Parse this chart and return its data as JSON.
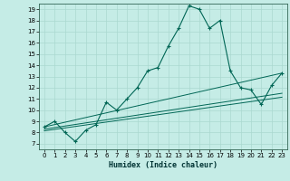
{
  "title": "",
  "xlabel": "Humidex (Indice chaleur)",
  "background_color": "#c5ece6",
  "grid_color": "#aad8d0",
  "line_color": "#006655",
  "xlim": [
    -0.5,
    23.5
  ],
  "ylim": [
    6.5,
    19.5
  ],
  "xticks": [
    0,
    1,
    2,
    3,
    4,
    5,
    6,
    7,
    8,
    9,
    10,
    11,
    12,
    13,
    14,
    15,
    16,
    17,
    18,
    19,
    20,
    21,
    22,
    23
  ],
  "yticks": [
    7,
    8,
    9,
    10,
    11,
    12,
    13,
    14,
    15,
    16,
    17,
    18,
    19
  ],
  "main_series": [
    [
      0,
      8.5
    ],
    [
      1,
      9.0
    ],
    [
      2,
      8.0
    ],
    [
      3,
      7.2
    ],
    [
      4,
      8.2
    ],
    [
      5,
      8.7
    ],
    [
      6,
      10.7
    ],
    [
      7,
      10.0
    ],
    [
      8,
      11.0
    ],
    [
      9,
      12.0
    ],
    [
      10,
      13.5
    ],
    [
      11,
      13.8
    ],
    [
      12,
      15.7
    ],
    [
      13,
      17.3
    ],
    [
      14,
      19.3
    ],
    [
      15,
      19.0
    ],
    [
      16,
      17.3
    ],
    [
      17,
      18.0
    ],
    [
      18,
      13.5
    ],
    [
      19,
      12.0
    ],
    [
      20,
      11.8
    ],
    [
      21,
      10.5
    ],
    [
      22,
      12.2
    ],
    [
      23,
      13.3
    ]
  ],
  "linear_series1": [
    [
      0,
      8.5
    ],
    [
      23,
      13.3
    ]
  ],
  "linear_series2": [
    [
      0,
      8.3
    ],
    [
      23,
      11.5
    ]
  ],
  "linear_series3": [
    [
      0,
      8.15
    ],
    [
      23,
      11.15
    ]
  ]
}
